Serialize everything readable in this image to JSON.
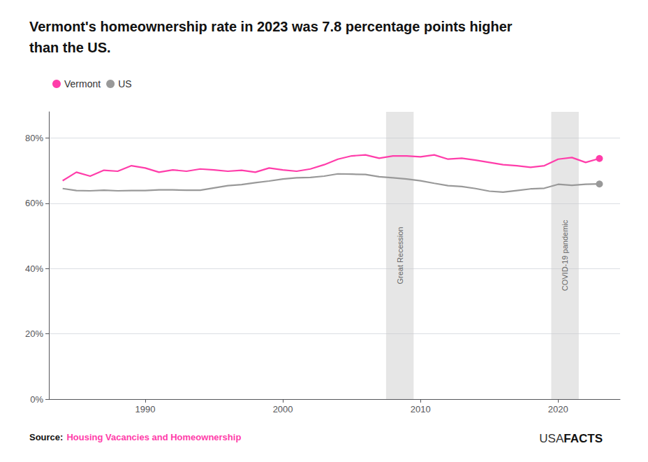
{
  "chart_data": {
    "type": "line",
    "title": "Vermont's homeownership rate in 2023 was 7.8 percentage points higher\nthan the US.",
    "x": [
      1984,
      1985,
      1986,
      1987,
      1988,
      1989,
      1990,
      1991,
      1992,
      1993,
      1994,
      1995,
      1996,
      1997,
      1998,
      1999,
      2000,
      2001,
      2002,
      2003,
      2004,
      2005,
      2006,
      2007,
      2008,
      2009,
      2010,
      2011,
      2012,
      2013,
      2014,
      2015,
      2016,
      2017,
      2018,
      2019,
      2020,
      2021,
      2022,
      2023
    ],
    "series": [
      {
        "name": "Vermont",
        "color": "#FF3DAA",
        "values": [
          66.9,
          69.5,
          68.3,
          70.1,
          69.8,
          71.5,
          70.8,
          69.5,
          70.2,
          69.8,
          70.5,
          70.2,
          69.8,
          70.1,
          69.5,
          70.8,
          70.2,
          69.8,
          70.5,
          71.8,
          73.5,
          74.5,
          74.8,
          73.8,
          74.5,
          74.5,
          74.2,
          74.8,
          73.5,
          73.8,
          73.2,
          72.5,
          71.8,
          71.5,
          71.0,
          71.5,
          73.5,
          74.0,
          72.5,
          73.7
        ]
      },
      {
        "name": "US",
        "color": "#999999",
        "values": [
          64.5,
          63.9,
          63.8,
          64.0,
          63.8,
          63.9,
          63.9,
          64.1,
          64.1,
          64.0,
          64.0,
          64.7,
          65.4,
          65.7,
          66.3,
          66.8,
          67.4,
          67.8,
          67.9,
          68.3,
          69.0,
          68.9,
          68.8,
          68.1,
          67.8,
          67.4,
          66.9,
          66.1,
          65.4,
          65.1,
          64.5,
          63.7,
          63.4,
          63.9,
          64.4,
          64.6,
          65.8,
          65.5,
          65.8,
          65.9
        ]
      }
    ],
    "xlim": [
      1983,
      2024.5
    ],
    "xticks": [
      1990,
      2000,
      2010,
      2020
    ],
    "ylim": [
      0,
      88
    ],
    "yticks": [
      {
        "value": 0,
        "label": "0%"
      },
      {
        "value": 20,
        "label": "20%"
      },
      {
        "value": 40,
        "label": "40%"
      },
      {
        "value": 60,
        "label": "60%"
      },
      {
        "value": 80,
        "label": "80%"
      }
    ],
    "grid": true,
    "legend": "top-left",
    "marker": "circle",
    "annotations": [
      {
        "text": "Great Recession",
        "x_start": 2007.5,
        "x_end": 2009.5
      },
      {
        "text": "COVID-19 pandemic",
        "x_start": 2019.5,
        "x_end": 2021.5
      }
    ],
    "source": {
      "label": "Source:",
      "text": "Housing Vacancies and Homeownership"
    },
    "logo": [
      "USA",
      "FACTS"
    ]
  }
}
